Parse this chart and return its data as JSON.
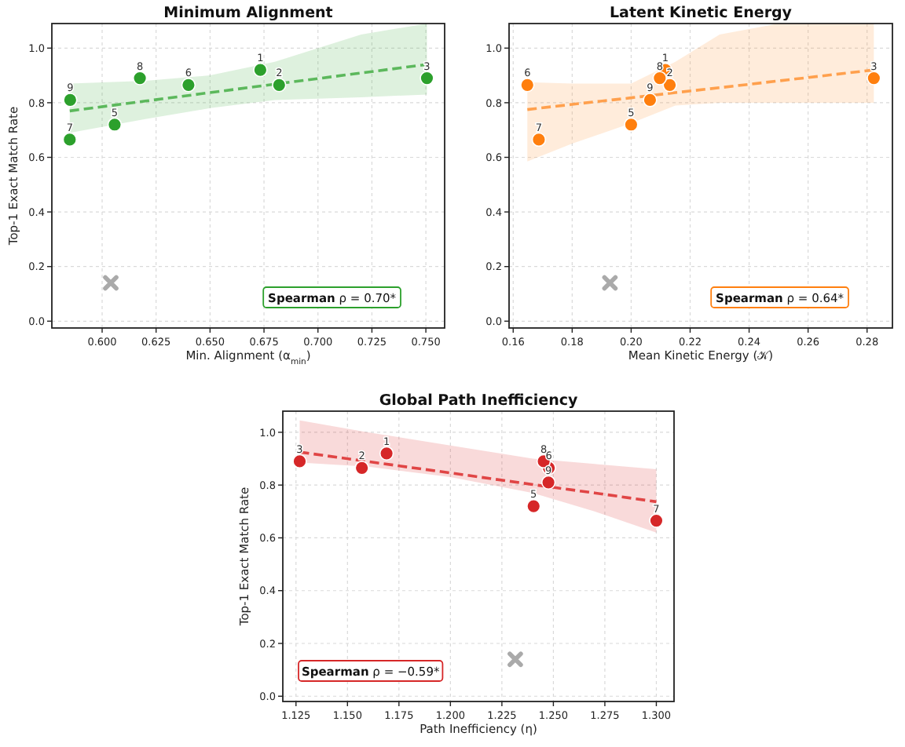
{
  "chart_data": [
    {
      "type": "scatter",
      "title": "Minimum Alignment",
      "xlabel": "Min. Alignment (α$_{min}$)",
      "ylabel": "Top-1 Exact Match Rate",
      "xlim": [
        0.5767,
        0.7587
      ],
      "ylim": [
        -0.025,
        1.09
      ],
      "xticks": [
        {
          "value": 0.6,
          "label": "0.600"
        },
        {
          "value": 0.625,
          "label": "0.625"
        },
        {
          "value": 0.65,
          "label": "0.650"
        },
        {
          "value": 0.675,
          "label": "0.675"
        },
        {
          "value": 0.7,
          "label": "0.700"
        },
        {
          "value": 0.725,
          "label": "0.725"
        },
        {
          "value": 0.75,
          "label": "0.750"
        }
      ],
      "yticks": [
        {
          "value": 0,
          "label": "0.0"
        },
        {
          "value": 0.2,
          "label": "0.2"
        },
        {
          "value": 0.4,
          "label": "0.4"
        },
        {
          "value": 0.6,
          "label": "0.6"
        },
        {
          "value": 0.8,
          "label": "0.8"
        },
        {
          "value": 1,
          "label": "1.0"
        }
      ],
      "grid": true,
      "series": [
        {
          "color": "#2ca02c",
          "marker": "circle",
          "x": [
            0.6733,
            0.682,
            0.7505,
            0.6058,
            0.64,
            0.585,
            0.6175,
            0.5852
          ],
          "values": [
            0.92,
            0.865,
            0.89,
            0.72,
            0.865,
            0.665,
            0.89,
            0.81
          ]
        },
        {
          "color": "#aaaaaa",
          "marker": "cross",
          "x": [
            0.604
          ],
          "values": [
            0.14
          ]
        },
        {
          "type": "line",
          "line_style": "dashed",
          "color": "#5cb85c",
          "x": [
            0.585,
            0.62,
            0.65,
            0.68,
            0.72,
            0.7505
          ],
          "values": [
            0.77,
            0.806,
            0.837,
            0.868,
            0.909,
            0.94
          ],
          "lower": [
            0.69,
            0.74,
            0.78,
            0.81,
            0.82,
            0.83
          ],
          "upper": [
            0.87,
            0.88,
            0.9,
            0.95,
            1.05,
            1.09
          ]
        }
      ],
      "annotations": [
        "Spearman ρ = 0.70*",
        {
          "text": "1",
          "x": 0.6733,
          "y": 0.92
        },
        {
          "text": "2",
          "x": 0.682,
          "y": 0.865
        },
        {
          "text": "3",
          "x": 0.7505,
          "y": 0.89
        },
        {
          "text": "5",
          "x": 0.6058,
          "y": 0.72
        },
        {
          "text": "6",
          "x": 0.64,
          "y": 0.865
        },
        {
          "text": "7",
          "x": 0.585,
          "y": 0.665
        },
        {
          "text": "8",
          "x": 0.6175,
          "y": 0.89
        },
        {
          "text": "9",
          "x": 0.5852,
          "y": 0.81
        }
      ]
    },
    {
      "type": "scatter",
      "title": "Latent Kinetic Energy",
      "xlabel": "Mean Kinetic Energy (𝒦)",
      "xlim": [
        0.1586,
        0.2886
      ],
      "ylim": [
        -0.025,
        1.09
      ],
      "xticks": [
        {
          "value": 0.16,
          "label": "0.16"
        },
        {
          "value": 0.18,
          "label": "0.18"
        },
        {
          "value": 0.2,
          "label": "0.20"
        },
        {
          "value": 0.22,
          "label": "0.22"
        },
        {
          "value": 0.24,
          "label": "0.24"
        },
        {
          "value": 0.26,
          "label": "0.26"
        },
        {
          "value": 0.28,
          "label": "0.28"
        }
      ],
      "yticks": [
        {
          "value": 0,
          "label": "0.0"
        },
        {
          "value": 0.2,
          "label": "0.2"
        },
        {
          "value": 0.4,
          "label": "0.4"
        },
        {
          "value": 0.6,
          "label": "0.6"
        },
        {
          "value": 0.8,
          "label": "0.8"
        },
        {
          "value": 1,
          "label": "1.0"
        }
      ],
      "grid": true,
      "series": [
        {
          "color": "#ff7f0e",
          "marker": "circle",
          "x": [
            0.2116,
            0.2131,
            0.2823,
            0.2,
            0.1648,
            0.1687,
            0.2097,
            0.2064
          ],
          "values": [
            0.92,
            0.865,
            0.89,
            0.72,
            0.865,
            0.665,
            0.89,
            0.81
          ]
        },
        {
          "color": "#aaaaaa",
          "marker": "cross",
          "x": [
            0.1928
          ],
          "values": [
            0.14
          ]
        },
        {
          "type": "line",
          "line_style": "dashed",
          "color": "#ffa04d",
          "x": [
            0.1648,
            0.18,
            0.2,
            0.215,
            0.23,
            0.25,
            0.2823
          ],
          "values": [
            0.775,
            0.794,
            0.818,
            0.837,
            0.855,
            0.88,
            0.92
          ],
          "lower": [
            0.585,
            0.65,
            0.725,
            0.79,
            0.8,
            0.8,
            0.8
          ],
          "upper": [
            0.875,
            0.87,
            0.87,
            0.95,
            1.05,
            1.09,
            1.09
          ]
        }
      ],
      "annotations": [
        "Spearman ρ = 0.64*",
        {
          "text": "1",
          "x": 0.2116,
          "y": 0.92
        },
        {
          "text": "2",
          "x": 0.2131,
          "y": 0.865
        },
        {
          "text": "3",
          "x": 0.2823,
          "y": 0.89
        },
        {
          "text": "5",
          "x": 0.2,
          "y": 0.72
        },
        {
          "text": "6",
          "x": 0.1648,
          "y": 0.865
        },
        {
          "text": "7",
          "x": 0.1687,
          "y": 0.665
        },
        {
          "text": "8",
          "x": 0.2097,
          "y": 0.89
        },
        {
          "text": "9",
          "x": 0.2064,
          "y": 0.81
        }
      ]
    },
    {
      "type": "scatter",
      "title": "Global Path Inefficiency",
      "xlabel": "Path Inefficiency (η)",
      "ylabel": "Top-1 Exact Match Rate",
      "xlim": [
        1.1186,
        1.3086
      ],
      "ylim": [
        -0.02,
        1.08
      ],
      "xticks": [
        {
          "value": 1.125,
          "label": "1.125"
        },
        {
          "value": 1.15,
          "label": "1.150"
        },
        {
          "value": 1.175,
          "label": "1.175"
        },
        {
          "value": 1.2,
          "label": "1.200"
        },
        {
          "value": 1.225,
          "label": "1.225"
        },
        {
          "value": 1.25,
          "label": "1.250"
        },
        {
          "value": 1.275,
          "label": "1.275"
        },
        {
          "value": 1.3,
          "label": "1.300"
        }
      ],
      "yticks": [
        {
          "value": 0,
          "label": "0.0"
        },
        {
          "value": 0.2,
          "label": "0.2"
        },
        {
          "value": 0.4,
          "label": "0.4"
        },
        {
          "value": 0.6,
          "label": "0.6"
        },
        {
          "value": 0.8,
          "label": "0.8"
        },
        {
          "value": 1,
          "label": "1.0"
        }
      ],
      "grid": true,
      "series": [
        {
          "color": "#d62728",
          "marker": "circle",
          "x": [
            1.169,
            1.157,
            1.1268,
            1.2404,
            1.2478,
            1.3,
            1.2453,
            1.2476
          ],
          "values": [
            0.92,
            0.865,
            0.89,
            0.72,
            0.865,
            0.665,
            0.89,
            0.81
          ]
        },
        {
          "color": "#aaaaaa",
          "marker": "cross",
          "x": [
            1.2315
          ],
          "values": [
            0.14
          ]
        },
        {
          "type": "line",
          "line_style": "dashed",
          "color": "#e04545",
          "x": [
            1.1268,
            1.16,
            1.2,
            1.24,
            1.27,
            1.3
          ],
          "values": [
            0.925,
            0.889,
            0.846,
            0.802,
            0.77,
            0.737
          ],
          "lower": [
            0.885,
            0.87,
            0.83,
            0.77,
            0.7,
            0.62
          ],
          "upper": [
            1.045,
            1.0,
            0.95,
            0.9,
            0.88,
            0.86
          ]
        }
      ],
      "annotations": [
        "Spearman ρ = −0.59*",
        {
          "text": "1",
          "x": 1.169,
          "y": 0.92
        },
        {
          "text": "2",
          "x": 1.157,
          "y": 0.865
        },
        {
          "text": "3",
          "x": 1.1268,
          "y": 0.89
        },
        {
          "text": "5",
          "x": 1.2404,
          "y": 0.72
        },
        {
          "text": "6",
          "x": 1.2478,
          "y": 0.865
        },
        {
          "text": "7",
          "x": 1.3,
          "y": 0.665
        },
        {
          "text": "8",
          "x": 1.2453,
          "y": 0.89
        },
        {
          "text": "9",
          "x": 1.2476,
          "y": 0.81
        }
      ]
    }
  ]
}
